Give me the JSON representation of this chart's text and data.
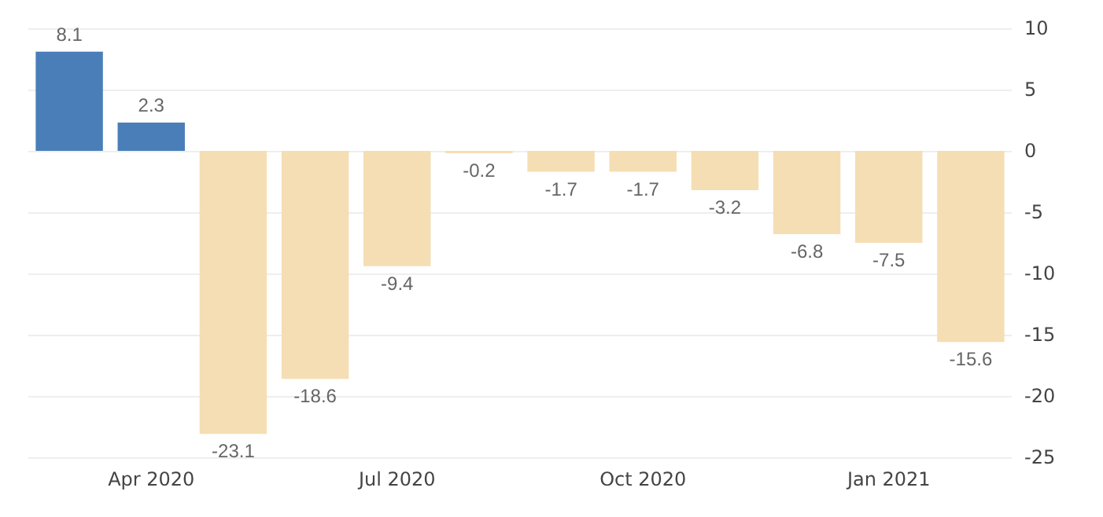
{
  "chart_data": {
    "type": "bar",
    "categories": [
      null,
      "Apr 2020",
      null,
      null,
      "Jul 2020",
      null,
      null,
      "Oct 2020",
      null,
      null,
      "Jan 2021",
      null
    ],
    "values": [
      8.1,
      2.3,
      -23.1,
      -18.6,
      -9.4,
      -0.2,
      -1.7,
      -1.7,
      -3.2,
      -6.8,
      -7.5,
      -15.6
    ],
    "colors": [
      "#4a7eb8",
      "#4a7eb8",
      "#f5deb3",
      "#f5deb3",
      "#f5deb3",
      "#f5deb3",
      "#f5deb3",
      "#f5deb3",
      "#f5deb3",
      "#f5deb3",
      "#f5deb3",
      "#f5deb3"
    ],
    "ylim": [
      -25,
      10
    ],
    "yticks": [
      -25,
      -20,
      -15,
      -10,
      -5,
      0,
      5,
      10
    ],
    "grid": "y",
    "data_labels": true
  }
}
